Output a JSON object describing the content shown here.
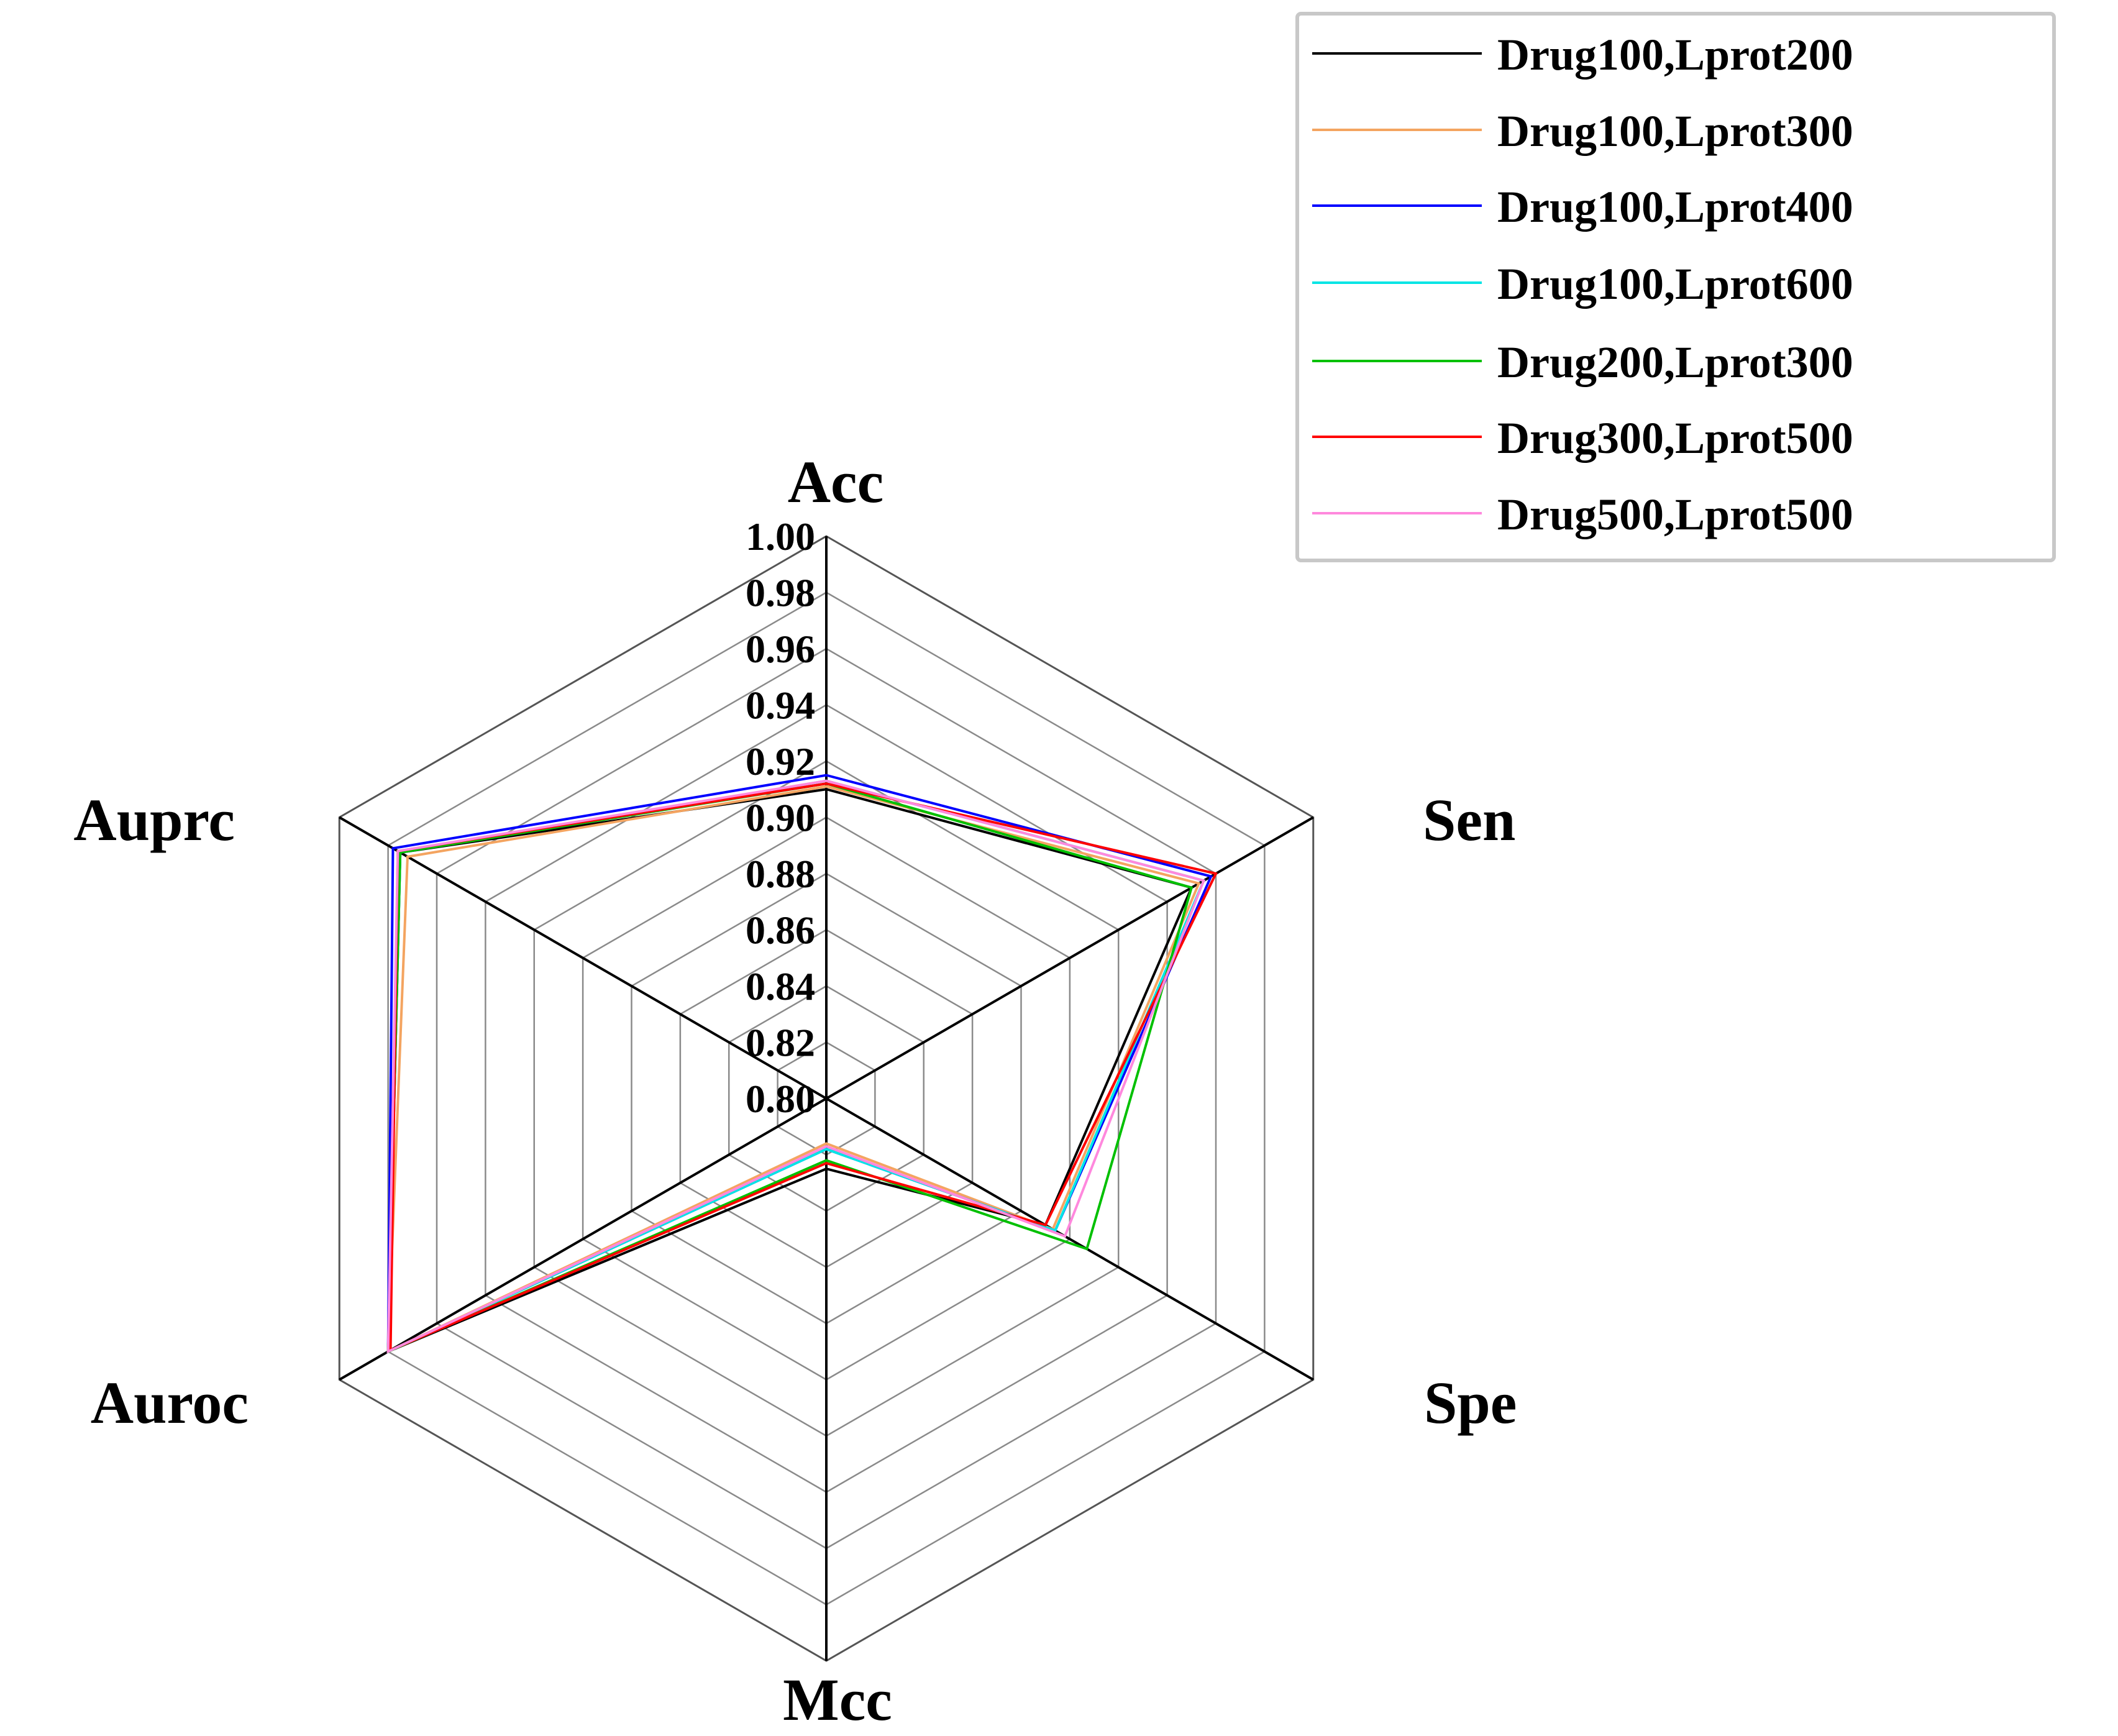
{
  "chart_data": {
    "type": "radar",
    "title": "",
    "axes": [
      "Acc",
      "Sen",
      "Spe",
      "Mcc",
      "Auroc",
      "Auprc"
    ],
    "range": [
      0.8,
      1.0
    ],
    "ticks": [
      "1.00",
      "0.98",
      "0.96",
      "0.94",
      "0.92",
      "0.90",
      "0.88",
      "0.86",
      "0.84",
      "0.82",
      "0.80"
    ],
    "grid": true,
    "legend_position": "top-right",
    "series": [
      {
        "name": "Drug100,Lprot200",
        "color": "#000000",
        "values": [
          0.91,
          0.95,
          0.89,
          0.825,
          0.98,
          0.975
        ]
      },
      {
        "name": "Drug100,Lprot300",
        "color": "#f4a460",
        "values": [
          0.911,
          0.953,
          0.893,
          0.816,
          0.98,
          0.972
        ]
      },
      {
        "name": "Drug100,Lprot400",
        "color": "#0000ff",
        "values": [
          0.915,
          0.958,
          0.894,
          0.818,
          0.98,
          0.978
        ]
      },
      {
        "name": "Drug100,Lprot600",
        "color": "#00e5e5",
        "values": [
          0.913,
          0.955,
          0.894,
          0.818,
          0.98,
          0.975
        ]
      },
      {
        "name": "Drug200,Lprot300",
        "color": "#00c000",
        "values": [
          0.912,
          0.95,
          0.907,
          0.822,
          0.98,
          0.975
        ]
      },
      {
        "name": "Drug300,Lprot500",
        "color": "#ff0000",
        "values": [
          0.912,
          0.96,
          0.89,
          0.823,
          0.979,
          0.976
        ]
      },
      {
        "name": "Drug500,Lprot500",
        "color": "#ff88dd",
        "values": [
          0.913,
          0.955,
          0.898,
          0.817,
          0.98,
          0.976
        ]
      }
    ]
  }
}
